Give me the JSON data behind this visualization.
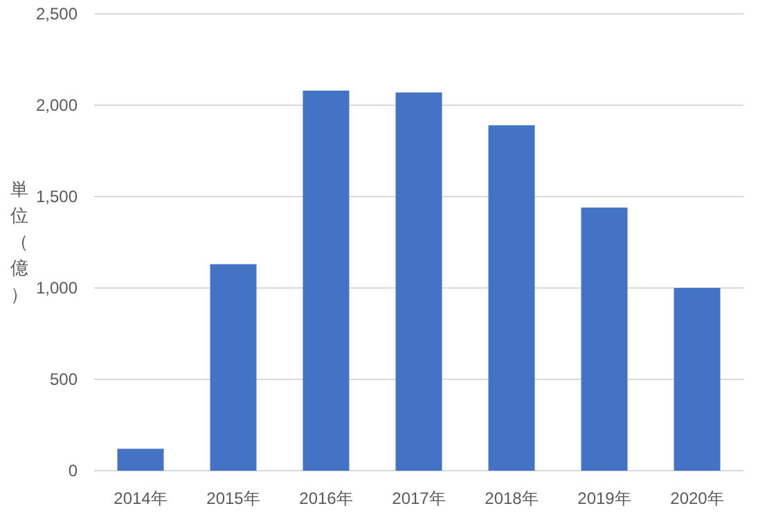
{
  "chart_data": {
    "type": "bar",
    "ylabel": "単位（億）",
    "categories": [
      "2014年",
      "2015年",
      "2016年",
      "2017年",
      "2018年",
      "2019年",
      "2020年"
    ],
    "values": [
      120,
      1130,
      2080,
      2070,
      1890,
      1440,
      1000
    ],
    "color": "#4472c4",
    "ylim": [
      0,
      2500
    ],
    "yticks": [
      0,
      500,
      {
        "value": 1000,
        "label": "1,000"
      },
      {
        "value": 1500,
        "label": "1,500"
      },
      {
        "value": 2000,
        "label": "2,000"
      },
      {
        "value": 2500,
        "label": "2,500"
      }
    ],
    "grid": "y"
  }
}
